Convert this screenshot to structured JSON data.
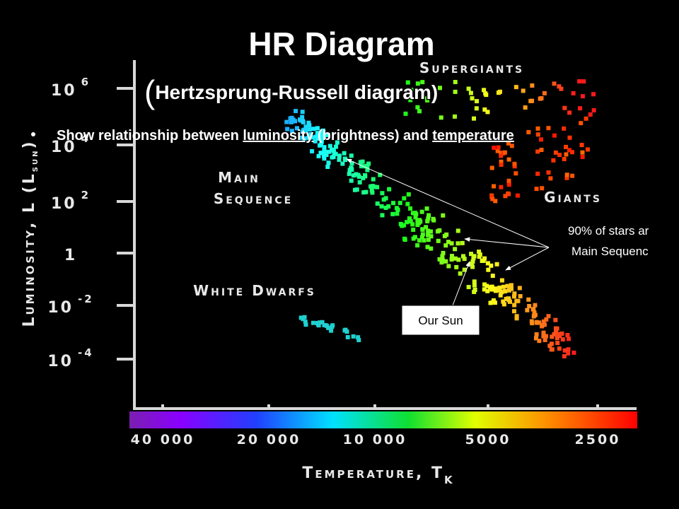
{
  "title": "HR Diagram",
  "subtitle": {
    "open": "(",
    "text": "Hertzsprung-Russell diagram)"
  },
  "bullet": {
    "parts": [
      "Show relationship between ",
      "luminosity",
      " (brightness) and ",
      "temperature"
    ]
  },
  "diagram": {
    "y_ticks": [
      {
        "base": "10",
        "exp": "6"
      },
      {
        "base": "10",
        "exp": "4"
      },
      {
        "base": "10",
        "exp": "2"
      },
      {
        "base": "1",
        "exp": ""
      },
      {
        "base": "10",
        "exp": "-2"
      },
      {
        "base": "10",
        "exp": "-4"
      }
    ],
    "x_ticks": [
      "40 000",
      "20 000",
      "10 000",
      "5000",
      "2500"
    ],
    "y_label": {
      "main": "Luminosity, L (L",
      "sub": "sun",
      "end": ")"
    },
    "x_label": {
      "main": "Temperature, T",
      "sub": "K"
    },
    "regions": [
      "Supergiants",
      "Main Sequence",
      "Giants",
      "White Dwarfs"
    ]
  },
  "callouts": {
    "sun": "Our Sun",
    "main_sequence": [
      "90% of stars ar",
      "Main Sequenc"
    ]
  }
}
